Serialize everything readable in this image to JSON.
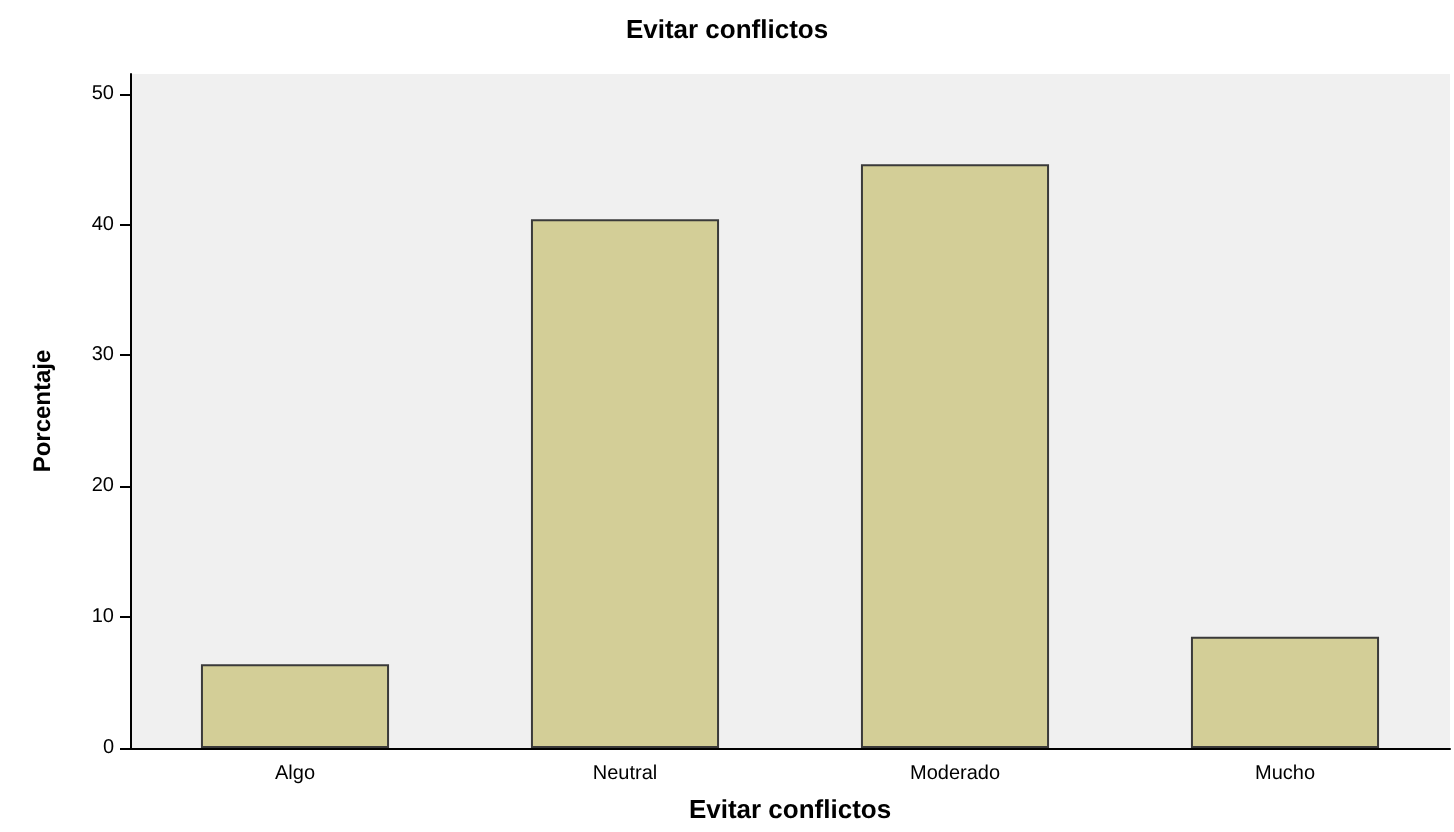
{
  "chart_data": {
    "type": "bar",
    "title": "Evitar conflictos",
    "xlabel": "Evitar conflictos",
    "ylabel": "Porcentaje",
    "categories": [
      "Algo",
      "Neutral",
      "Moderado",
      "Mucho"
    ],
    "values": [
      6.4,
      40.4,
      44.6,
      8.5
    ],
    "color": "#d3ce97",
    "ylim": [
      0,
      51.5
    ],
    "yticks": [
      0,
      10,
      20,
      30,
      40,
      50
    ],
    "grid": false
  }
}
